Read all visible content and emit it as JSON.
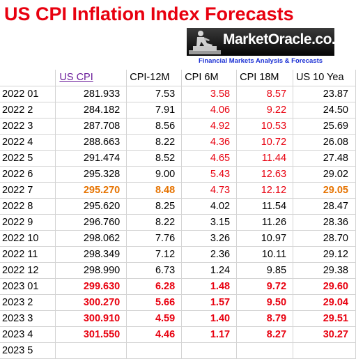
{
  "title": "US CPI Inflation Index Forecasts",
  "logo": {
    "name": "MarketOracle.co.uk",
    "tagline": "Financial Markets Analysis & Forecasts"
  },
  "table": {
    "headers": [
      "",
      "US CPI",
      "CPI-12M",
      "CPI 6M",
      "CPI 18M",
      "US 10 Yea"
    ],
    "rows": [
      {
        "period": "2022 01",
        "values": [
          "281.933",
          "7.53",
          "3.58",
          "8.57",
          "23.87"
        ],
        "colors": [
          "black",
          "black",
          "red",
          "red",
          "black"
        ],
        "bold": false
      },
      {
        "period": "2022 2",
        "values": [
          "284.182",
          "7.91",
          "4.06",
          "9.22",
          "24.50"
        ],
        "colors": [
          "black",
          "black",
          "red",
          "red",
          "black"
        ],
        "bold": false
      },
      {
        "period": "2022 3",
        "values": [
          "287.708",
          "8.56",
          "4.92",
          "10.53",
          "25.69"
        ],
        "colors": [
          "black",
          "black",
          "red",
          "red",
          "black"
        ],
        "bold": false
      },
      {
        "period": "2022 4",
        "values": [
          "288.663",
          "8.22",
          "4.36",
          "10.72",
          "26.08"
        ],
        "colors": [
          "black",
          "black",
          "red",
          "red",
          "black"
        ],
        "bold": false
      },
      {
        "period": "2022 5",
        "values": [
          "291.474",
          "8.52",
          "4.65",
          "11.44",
          "27.48"
        ],
        "colors": [
          "black",
          "black",
          "red",
          "red",
          "black"
        ],
        "bold": false
      },
      {
        "period": "2022 6",
        "values": [
          "295.328",
          "9.00",
          "5.43",
          "12.63",
          "29.02"
        ],
        "colors": [
          "black",
          "black",
          "red",
          "red",
          "black"
        ],
        "bold": false
      },
      {
        "period": "2022 7",
        "values": [
          "295.270",
          "8.48",
          "4.73",
          "12.12",
          "29.05"
        ],
        "colors": [
          "orange",
          "orange",
          "red",
          "red",
          "orange"
        ],
        "bold": false
      },
      {
        "period": "2022 8",
        "values": [
          "295.620",
          "8.25",
          "4.02",
          "11.54",
          "28.47"
        ],
        "colors": [
          "black",
          "black",
          "black",
          "black",
          "black"
        ],
        "bold": false
      },
      {
        "period": "2022 9",
        "values": [
          "296.760",
          "8.22",
          "3.15",
          "11.26",
          "28.36"
        ],
        "colors": [
          "black",
          "black",
          "black",
          "black",
          "black"
        ],
        "bold": false
      },
      {
        "period": "2022 10",
        "values": [
          "298.062",
          "7.76",
          "3.26",
          "10.97",
          "28.70"
        ],
        "colors": [
          "black",
          "black",
          "black",
          "black",
          "black"
        ],
        "bold": false
      },
      {
        "period": "2022 11",
        "values": [
          "298.349",
          "7.12",
          "2.36",
          "10.11",
          "29.12"
        ],
        "colors": [
          "black",
          "black",
          "black",
          "black",
          "black"
        ],
        "bold": false
      },
      {
        "period": "2022 12",
        "values": [
          "298.990",
          "6.73",
          "1.24",
          "9.85",
          "29.38"
        ],
        "colors": [
          "black",
          "black",
          "black",
          "black",
          "black"
        ],
        "bold": false
      },
      {
        "period": "2023 01",
        "values": [
          "299.630",
          "6.28",
          "1.48",
          "9.72",
          "29.60"
        ],
        "colors": [
          "red",
          "red",
          "red",
          "red",
          "red"
        ],
        "bold": true
      },
      {
        "period": "2023 2",
        "values": [
          "300.270",
          "5.66",
          "1.57",
          "9.50",
          "29.04"
        ],
        "colors": [
          "red",
          "red",
          "red",
          "red",
          "red"
        ],
        "bold": true
      },
      {
        "period": "2023 3",
        "values": [
          "300.910",
          "4.59",
          "1.40",
          "8.79",
          "29.51"
        ],
        "colors": [
          "red",
          "red",
          "red",
          "red",
          "red"
        ],
        "bold": true
      },
      {
        "period": "2023 4",
        "values": [
          "301.550",
          "4.46",
          "1.17",
          "8.27",
          "30.27"
        ],
        "colors": [
          "red",
          "red",
          "red",
          "red",
          "red"
        ],
        "bold": true
      },
      {
        "period": "2023 5",
        "values": [
          "",
          "",
          "",
          "",
          ""
        ],
        "colors": [
          "black",
          "black",
          "black",
          "black",
          "black"
        ],
        "bold": false
      }
    ]
  },
  "colors": {
    "red": "#e8000f",
    "orange": "#e67300",
    "purple": "#6a1b9a",
    "blue": "#1a2fd4"
  },
  "icons": {
    "logo_figure": "sculpture-figure-icon"
  }
}
